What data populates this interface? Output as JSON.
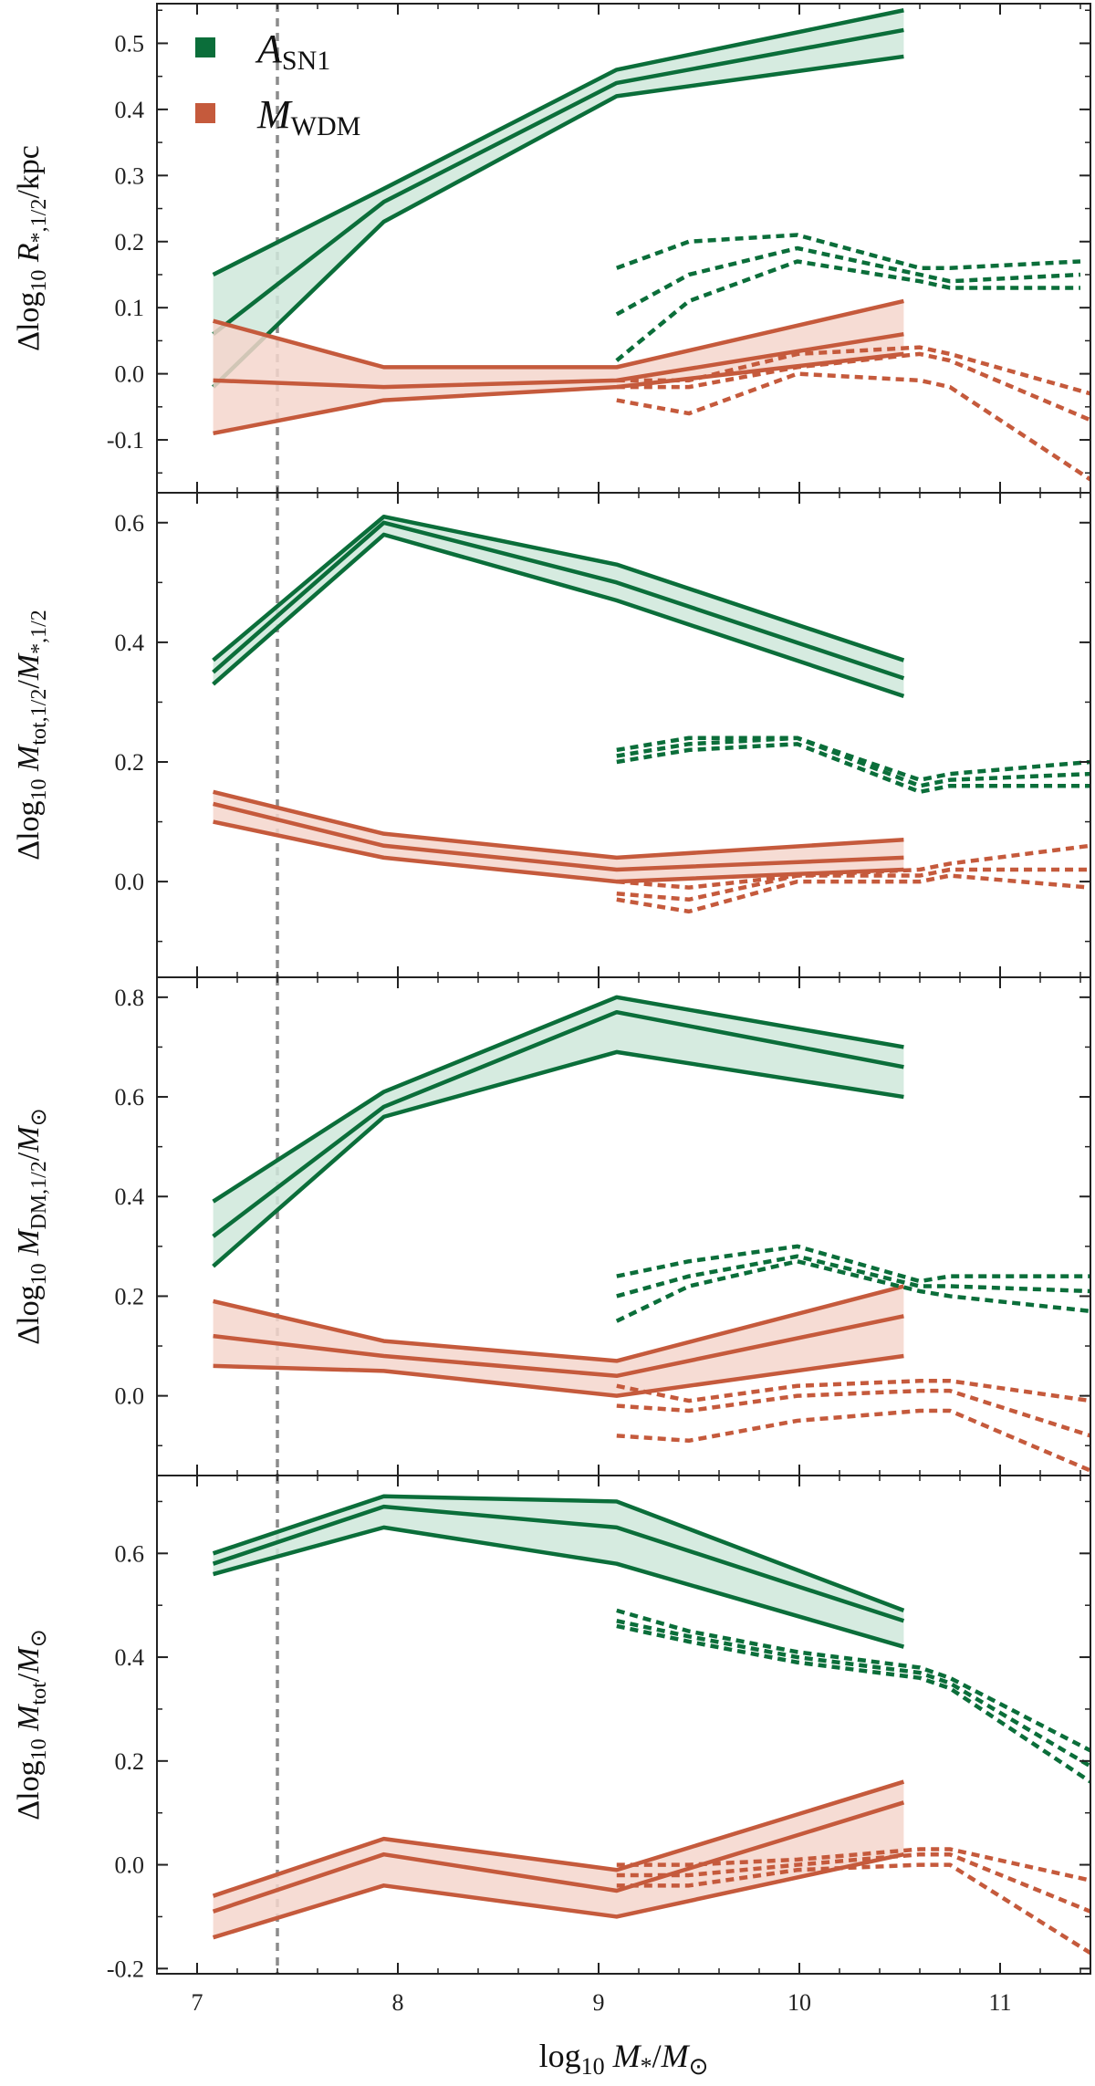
{
  "colors": {
    "asn1": "#0b6e3a",
    "asn1_fill": "#cfe8da",
    "mwdm": "#c55a3c",
    "mwdm_fill": "#f5d6cc",
    "vline": "#8c8c8c",
    "axis": "#222222"
  },
  "xlabel": {
    "main": "log",
    "sub10": "10",
    "M": "M",
    "star": "*",
    "sep": "/",
    "Msun": "M",
    "sun": "⊙"
  },
  "xticks": [
    "7",
    "8",
    "9",
    "10",
    "11"
  ],
  "xlim": [
    6.8,
    11.45
  ],
  "vline_x": 7.4,
  "legend": [
    {
      "key": "asn1",
      "label": "A",
      "sub": "SN1"
    },
    {
      "key": "mwdm",
      "label": "M",
      "sub": "WDM"
    }
  ],
  "chart_data": [
    {
      "type": "line",
      "ylabel": "Δlog10 R*,1/2/kpc",
      "ylabel_parts": {
        "delta": "Δlog",
        "sub10": "10",
        "R": "R",
        "rsub": "*,1/2",
        "rest": "/kpc"
      },
      "ylim": [
        -0.18,
        0.56
      ],
      "yticks": [
        "-0.1",
        "0.0",
        "0.1",
        "0.2",
        "0.3",
        "0.4",
        "0.5"
      ],
      "ytick_values": [
        -0.1,
        0.0,
        0.1,
        0.2,
        0.3,
        0.4,
        0.5
      ],
      "series": [
        {
          "name": "ASN1",
          "style": "solid",
          "x": [
            7.08,
            7.93,
            9.09,
            10.52
          ],
          "mid": [
            0.06,
            0.26,
            0.44,
            0.52
          ],
          "lo": [
            -0.02,
            0.23,
            0.42,
            0.48
          ],
          "hi": [
            0.15,
            0.28,
            0.46,
            0.55
          ]
        },
        {
          "name": "MWDM",
          "style": "solid",
          "x": [
            7.08,
            7.93,
            9.09,
            10.52
          ],
          "mid": [
            -0.01,
            -0.02,
            -0.01,
            0.06
          ],
          "lo": [
            -0.09,
            -0.04,
            -0.02,
            0.03
          ],
          "hi": [
            0.08,
            0.01,
            0.01,
            0.11
          ]
        },
        {
          "name": "ASN1",
          "style": "dashed",
          "x": [
            9.09,
            9.45,
            9.99,
            10.6,
            10.75,
            11.4
          ],
          "mid": [
            0.09,
            0.15,
            0.19,
            0.15,
            0.14,
            0.15
          ],
          "lo": [
            0.02,
            0.11,
            0.17,
            0.14,
            0.13,
            0.13
          ],
          "hi": [
            0.16,
            0.2,
            0.21,
            0.16,
            0.16,
            0.17
          ]
        },
        {
          "name": "MWDM",
          "style": "dashed",
          "x": [
            9.09,
            9.45,
            9.99,
            10.6,
            10.75,
            11.45
          ],
          "mid": [
            -0.02,
            -0.02,
            0.01,
            0.03,
            0.02,
            -0.07
          ],
          "lo": [
            -0.04,
            -0.06,
            0.0,
            -0.01,
            -0.02,
            -0.16
          ],
          "hi": [
            -0.01,
            -0.01,
            0.03,
            0.04,
            0.03,
            -0.03
          ]
        }
      ]
    },
    {
      "type": "line",
      "ylabel": "Δlog10 Mtot,1/2/M*,1/2",
      "ylabel_parts": {
        "delta": "Δlog",
        "sub10": "10",
        "M1": "M",
        "m1sub": "tot,1/2",
        "sep": "/",
        "M2": "M",
        "m2sub": "*,1/2"
      },
      "ylim": [
        -0.16,
        0.65
      ],
      "yticks": [
        "0.0",
        "0.2",
        "0.4",
        "0.6"
      ],
      "ytick_values": [
        0.0,
        0.2,
        0.4,
        0.6
      ],
      "series": [
        {
          "name": "ASN1",
          "style": "solid",
          "x": [
            7.08,
            7.93,
            9.09,
            10.52
          ],
          "mid": [
            0.35,
            0.6,
            0.5,
            0.34
          ],
          "lo": [
            0.33,
            0.58,
            0.47,
            0.31
          ],
          "hi": [
            0.37,
            0.61,
            0.53,
            0.37
          ]
        },
        {
          "name": "MWDM",
          "style": "solid",
          "x": [
            7.08,
            7.93,
            9.09,
            10.52
          ],
          "mid": [
            0.13,
            0.06,
            0.02,
            0.04
          ],
          "lo": [
            0.1,
            0.04,
            0.0,
            0.02
          ],
          "hi": [
            0.15,
            0.08,
            0.04,
            0.07
          ]
        },
        {
          "name": "ASN1",
          "style": "dashed",
          "x": [
            9.09,
            9.45,
            9.99,
            10.6,
            10.75,
            11.45
          ],
          "mid": [
            0.21,
            0.23,
            0.24,
            0.16,
            0.17,
            0.18
          ],
          "lo": [
            0.2,
            0.22,
            0.23,
            0.15,
            0.16,
            0.16
          ],
          "hi": [
            0.22,
            0.24,
            0.24,
            0.17,
            0.18,
            0.2
          ]
        },
        {
          "name": "MWDM",
          "style": "dashed",
          "x": [
            9.09,
            9.45,
            9.99,
            10.6,
            10.75,
            11.45
          ],
          "mid": [
            -0.02,
            -0.03,
            0.01,
            0.01,
            0.02,
            0.02
          ],
          "lo": [
            -0.03,
            -0.05,
            0.0,
            0.0,
            0.01,
            -0.01
          ],
          "hi": [
            0.0,
            -0.01,
            0.01,
            0.02,
            0.03,
            0.06
          ]
        }
      ]
    },
    {
      "type": "line",
      "ylabel": "Δlog10 MDM,1/2/M⊙",
      "ylabel_parts": {
        "delta": "Δlog",
        "sub10": "10",
        "M1": "M",
        "m1sub": "DM,1/2",
        "sep": "/",
        "M2": "M",
        "m2sub": "⊙"
      },
      "ylim": [
        -0.16,
        0.84
      ],
      "yticks": [
        "0.0",
        "0.2",
        "0.4",
        "0.6",
        "0.8"
      ],
      "ytick_values": [
        0.0,
        0.2,
        0.4,
        0.6,
        0.8
      ],
      "series": [
        {
          "name": "ASN1",
          "style": "solid",
          "x": [
            7.08,
            7.93,
            9.09,
            10.52
          ],
          "mid": [
            0.32,
            0.58,
            0.77,
            0.66
          ],
          "lo": [
            0.26,
            0.56,
            0.69,
            0.6
          ],
          "hi": [
            0.39,
            0.61,
            0.8,
            0.7
          ]
        },
        {
          "name": "MWDM",
          "style": "solid",
          "x": [
            7.08,
            7.93,
            9.09,
            10.52
          ],
          "mid": [
            0.12,
            0.08,
            0.04,
            0.16
          ],
          "lo": [
            0.06,
            0.05,
            0.0,
            0.08
          ],
          "hi": [
            0.19,
            0.11,
            0.07,
            0.22
          ]
        },
        {
          "name": "ASN1",
          "style": "dashed",
          "x": [
            9.09,
            9.45,
            9.99,
            10.6,
            10.75,
            11.45
          ],
          "mid": [
            0.2,
            0.24,
            0.28,
            0.22,
            0.22,
            0.21
          ],
          "lo": [
            0.15,
            0.22,
            0.27,
            0.21,
            0.2,
            0.17
          ],
          "hi": [
            0.24,
            0.27,
            0.3,
            0.23,
            0.24,
            0.24
          ]
        },
        {
          "name": "MWDM",
          "style": "dashed",
          "x": [
            9.09,
            9.45,
            9.99,
            10.6,
            10.75,
            11.45
          ],
          "mid": [
            -0.02,
            -0.03,
            0.0,
            0.01,
            0.01,
            -0.08
          ],
          "lo": [
            -0.08,
            -0.09,
            -0.05,
            -0.03,
            -0.03,
            -0.15
          ],
          "hi": [
            0.02,
            -0.01,
            0.02,
            0.03,
            0.03,
            -0.01
          ]
        }
      ]
    },
    {
      "type": "line",
      "ylabel": "Δlog10 Mtot/M⊙",
      "ylabel_parts": {
        "delta": "Δlog",
        "sub10": "10",
        "M1": "M",
        "m1sub": "tot",
        "sep": "/",
        "M2": "M",
        "m2sub": "⊙"
      },
      "ylim": [
        -0.21,
        0.75
      ],
      "yticks": [
        "-0.2",
        "0.0",
        "0.2",
        "0.4",
        "0.6"
      ],
      "ytick_values": [
        -0.2,
        0.0,
        0.2,
        0.4,
        0.6
      ],
      "series": [
        {
          "name": "ASN1",
          "style": "solid",
          "x": [
            7.08,
            7.93,
            9.09,
            10.52
          ],
          "mid": [
            0.58,
            0.69,
            0.65,
            0.47
          ],
          "lo": [
            0.56,
            0.65,
            0.58,
            0.42
          ],
          "hi": [
            0.6,
            0.71,
            0.7,
            0.49
          ]
        },
        {
          "name": "MWDM",
          "style": "solid",
          "x": [
            7.08,
            7.93,
            9.09,
            10.52
          ],
          "mid": [
            -0.09,
            0.02,
            -0.05,
            0.12
          ],
          "lo": [
            -0.14,
            -0.04,
            -0.1,
            0.02
          ],
          "hi": [
            -0.06,
            0.05,
            -0.01,
            0.16
          ]
        },
        {
          "name": "ASN1",
          "style": "dashed",
          "x": [
            9.09,
            9.45,
            9.99,
            10.6,
            10.75,
            11.45
          ],
          "mid": [
            0.47,
            0.44,
            0.4,
            0.37,
            0.35,
            0.19
          ],
          "lo": [
            0.46,
            0.43,
            0.39,
            0.36,
            0.34,
            0.16
          ],
          "hi": [
            0.49,
            0.45,
            0.41,
            0.38,
            0.36,
            0.22
          ]
        },
        {
          "name": "MWDM",
          "style": "dashed",
          "x": [
            9.09,
            9.45,
            9.99,
            10.6,
            10.75,
            11.45
          ],
          "mid": [
            -0.02,
            -0.02,
            0.0,
            0.02,
            0.02,
            -0.09
          ],
          "lo": [
            -0.04,
            -0.04,
            -0.01,
            0.0,
            0.0,
            -0.17
          ],
          "hi": [
            0.0,
            0.0,
            0.01,
            0.03,
            0.03,
            -0.03
          ]
        }
      ]
    }
  ]
}
